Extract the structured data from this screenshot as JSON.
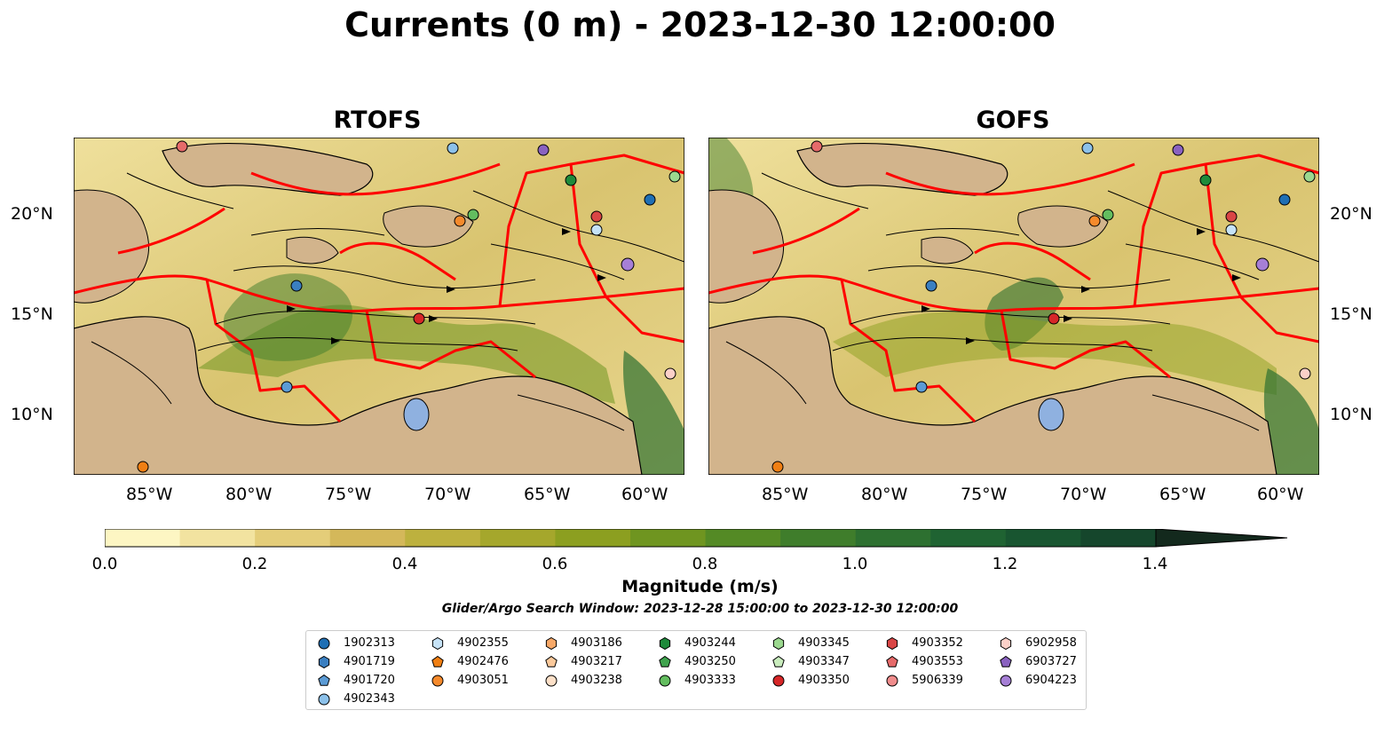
{
  "title": "Currents (0 m) - 2023-12-30 12:00:00",
  "panels": [
    {
      "title": "RTOFS"
    },
    {
      "title": "GOFS"
    }
  ],
  "lat_ticks": [
    "20°N",
    "15°N",
    "10°N"
  ],
  "lon_ticks": [
    "85°W",
    "80°W",
    "75°W",
    "70°W",
    "65°W",
    "60°W"
  ],
  "colorbar": {
    "label": "Magnitude (m/s)",
    "ticks": [
      "0.0",
      "0.2",
      "0.4",
      "0.6",
      "0.8",
      "1.0",
      "1.2",
      "1.4"
    ],
    "colors": [
      "#fdf6c3",
      "#f2e3a0",
      "#e4cd79",
      "#d4b85a",
      "#bdb13e",
      "#a5a72c",
      "#8c9f20",
      "#6f9520",
      "#548a25",
      "#3f7d2b",
      "#2d7030",
      "#1f6332",
      "#185530",
      "#15462c",
      "#143826",
      "#13291d"
    ]
  },
  "search_window": "Glider/Argo Search Window: 2023-12-28 15:00:00 to 2023-12-30 12:00:00",
  "legend": [
    {
      "id": "1902313",
      "shape": "circle",
      "color": "#1f6fb4"
    },
    {
      "id": "4901719",
      "shape": "hexagon",
      "color": "#3a7fc1"
    },
    {
      "id": "4901720",
      "shape": "pentagon",
      "color": "#5b9bd5"
    },
    {
      "id": "4902343",
      "shape": "circle",
      "color": "#8cc1ea"
    },
    {
      "id": "4902355",
      "shape": "hexagon",
      "color": "#c6e3f7"
    },
    {
      "id": "4902476",
      "shape": "pentagon",
      "color": "#f07f13"
    },
    {
      "id": "4903051",
      "shape": "circle",
      "color": "#f58a2c"
    },
    {
      "id": "4903186",
      "shape": "hexagon",
      "color": "#f7a868"
    },
    {
      "id": "4903217",
      "shape": "pentagon",
      "color": "#fbc99b"
    },
    {
      "id": "4903238",
      "shape": "circle",
      "color": "#fde0c8"
    },
    {
      "id": "4903244",
      "shape": "hexagon",
      "color": "#1e8a3a"
    },
    {
      "id": "4903250",
      "shape": "pentagon",
      "color": "#3fa34d"
    },
    {
      "id": "4903333",
      "shape": "circle",
      "color": "#63bd5f"
    },
    {
      "id": "4903345",
      "shape": "hexagon",
      "color": "#9bd88f"
    },
    {
      "id": "4903347",
      "shape": "pentagon",
      "color": "#c9ecbd"
    },
    {
      "id": "4903350",
      "shape": "circle",
      "color": "#d62728"
    },
    {
      "id": "4903352",
      "shape": "hexagon",
      "color": "#d94545"
    },
    {
      "id": "4903553",
      "shape": "pentagon",
      "color": "#e66a6a"
    },
    {
      "id": "5906339",
      "shape": "circle",
      "color": "#f08c8c"
    },
    {
      "id": "6902958",
      "shape": "hexagon",
      "color": "#fbd0c8"
    },
    {
      "id": "6903727",
      "shape": "pentagon",
      "color": "#8a62c0"
    },
    {
      "id": "6904223",
      "shape": "circle",
      "color": "#a67fd6"
    }
  ],
  "colors": {
    "land": "#d2b48c",
    "boundary": "#ff0000",
    "lake": "#8fb1e0"
  }
}
